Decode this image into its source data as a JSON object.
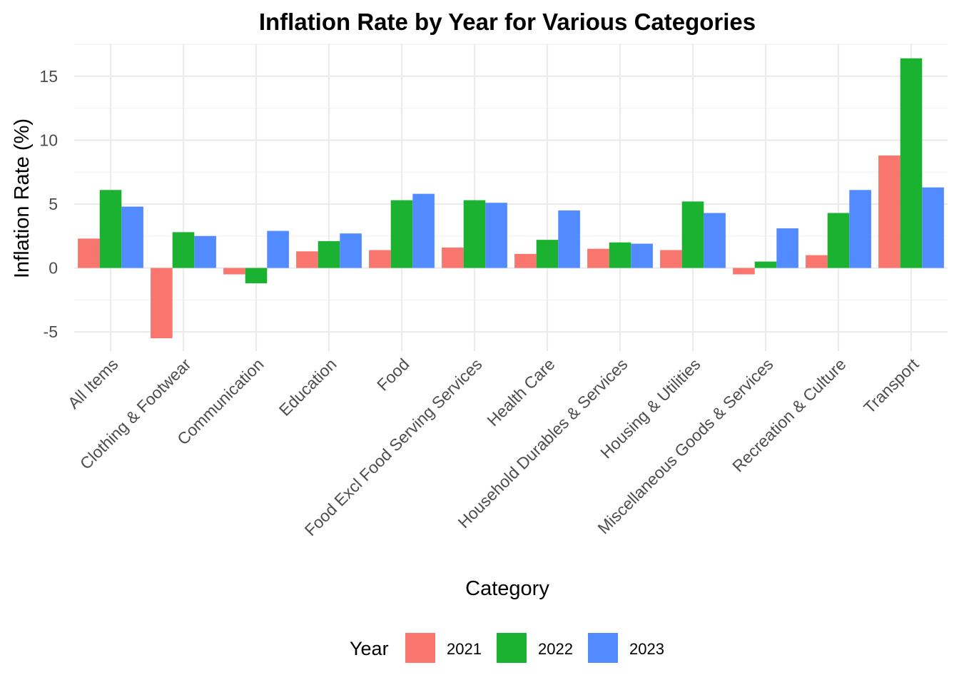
{
  "chart_data": {
    "type": "bar",
    "title": "Inflation Rate by Year for Various Categories",
    "xlabel": "Category",
    "ylabel": "Inflation Rate (%)",
    "ylim": [
      -6.5,
      17.5
    ],
    "yticks": [
      -5,
      0,
      5,
      10,
      15
    ],
    "ytick_labels": [
      "-5",
      "0",
      "5",
      "10",
      "15"
    ],
    "grid": true,
    "legend_title": "Year",
    "legend_position": "bottom",
    "categories": [
      "All Items",
      "Clothing & Footwear",
      "Communication",
      "Education",
      "Food",
      "Food Excl Food Serving Services",
      "Health Care",
      "Household Durables & Services",
      "Housing & Utilities",
      "Miscellaneous Goods & Services",
      "Recreation & Culture",
      "Transport"
    ],
    "series": [
      {
        "name": "2021",
        "color": "#F8766D",
        "values": [
          2.3,
          -5.5,
          -0.5,
          1.3,
          1.4,
          1.6,
          1.1,
          1.5,
          1.4,
          -0.5,
          1.0,
          8.8
        ]
      },
      {
        "name": "2022",
        "color": "#1BB232",
        "values": [
          6.1,
          2.8,
          -1.2,
          2.1,
          5.3,
          5.3,
          2.2,
          2.0,
          5.2,
          0.5,
          4.3,
          16.4
        ]
      },
      {
        "name": "2023",
        "color": "#528BFF",
        "values": [
          4.8,
          2.5,
          2.9,
          2.7,
          5.8,
          5.1,
          4.5,
          1.9,
          4.3,
          3.1,
          6.1,
          6.3
        ]
      }
    ]
  }
}
